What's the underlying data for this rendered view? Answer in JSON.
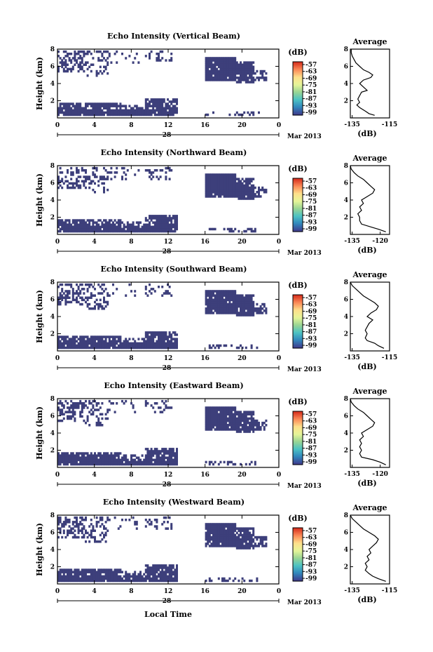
{
  "panels": [
    {
      "title": "Echo Intensity (Vertical Beam)",
      "profile": [
        [
          -123,
          0.3
        ],
        [
          -126,
          0.5
        ],
        [
          -128,
          0.8
        ],
        [
          -131,
          1.2
        ],
        [
          -132.5,
          1.5
        ],
        [
          -131,
          1.8
        ],
        [
          -132,
          2.2
        ],
        [
          -131,
          2.6
        ],
        [
          -130,
          3.0
        ],
        [
          -127,
          3.2
        ],
        [
          -129,
          3.6
        ],
        [
          -131,
          4.0
        ],
        [
          -129,
          4.4
        ],
        [
          -125,
          4.7
        ],
        [
          -124,
          5.0
        ],
        [
          -126,
          5.3
        ],
        [
          -129,
          5.6
        ],
        [
          -131,
          6.0
        ],
        [
          -133,
          6.4
        ],
        [
          -134,
          6.8
        ],
        [
          -135,
          7.2
        ],
        [
          -135.5,
          7.6
        ],
        [
          -135.5,
          8.0
        ]
      ]
    },
    {
      "title": "Echo Intensity (Northward Beam)",
      "profile": [
        [
          -117,
          0.3
        ],
        [
          -121,
          0.6
        ],
        [
          -124,
          0.8
        ],
        [
          -130,
          1.2
        ],
        [
          -131,
          1.6
        ],
        [
          -131,
          2.0
        ],
        [
          -132,
          2.4
        ],
        [
          -130,
          2.8
        ],
        [
          -131,
          3.2
        ],
        [
          -129,
          3.6
        ],
        [
          -130,
          4.0
        ],
        [
          -127,
          4.4
        ],
        [
          -124,
          4.8
        ],
        [
          -123,
          5.2
        ],
        [
          -125,
          5.6
        ],
        [
          -127,
          6.0
        ],
        [
          -129,
          6.4
        ],
        [
          -132,
          6.8
        ],
        [
          -134,
          7.2
        ],
        [
          -135.5,
          7.6
        ],
        [
          -136,
          8.0
        ]
      ]
    },
    {
      "title": "Echo Intensity (Southward Beam)",
      "profile": [
        [
          -118,
          0.3
        ],
        [
          -121,
          0.6
        ],
        [
          -123,
          0.9
        ],
        [
          -127,
          1.2
        ],
        [
          -128,
          1.5
        ],
        [
          -127,
          2.0
        ],
        [
          -128,
          2.4
        ],
        [
          -127,
          2.8
        ],
        [
          -126,
          3.2
        ],
        [
          -124,
          3.6
        ],
        [
          -127,
          4.0
        ],
        [
          -125,
          4.4
        ],
        [
          -122,
          4.8
        ],
        [
          -121,
          5.2
        ],
        [
          -123,
          5.6
        ],
        [
          -126,
          6.0
        ],
        [
          -129,
          6.4
        ],
        [
          -131,
          6.8
        ],
        [
          -133,
          7.2
        ],
        [
          -135,
          7.6
        ],
        [
          -136,
          8.0
        ]
      ]
    },
    {
      "title": "Echo Intensity (Eastward Beam)",
      "profile": [
        [
          -117,
          0.3
        ],
        [
          -120,
          0.6
        ],
        [
          -124,
          0.9
        ],
        [
          -130,
          1.2
        ],
        [
          -131,
          1.6
        ],
        [
          -130,
          2.0
        ],
        [
          -131,
          2.4
        ],
        [
          -130,
          2.8
        ],
        [
          -131,
          3.2
        ],
        [
          -129,
          3.6
        ],
        [
          -130,
          4.0
        ],
        [
          -127,
          4.4
        ],
        [
          -124,
          4.8
        ],
        [
          -123,
          5.2
        ],
        [
          -125,
          5.6
        ],
        [
          -127,
          6.0
        ],
        [
          -129,
          6.4
        ],
        [
          -132,
          6.8
        ],
        [
          -134,
          7.2
        ],
        [
          -135.5,
          7.6
        ],
        [
          -136,
          8.0
        ]
      ]
    },
    {
      "title": "Echo Intensity (Westward Beam)",
      "profile": [
        [
          -117,
          0.3
        ],
        [
          -121,
          0.6
        ],
        [
          -124,
          0.9
        ],
        [
          -126,
          1.2
        ],
        [
          -128,
          1.6
        ],
        [
          -127,
          2.0
        ],
        [
          -128,
          2.4
        ],
        [
          -126,
          2.8
        ],
        [
          -127,
          3.2
        ],
        [
          -125,
          3.6
        ],
        [
          -126,
          4.0
        ],
        [
          -124,
          4.4
        ],
        [
          -122,
          4.8
        ],
        [
          -121,
          5.2
        ],
        [
          -123,
          5.6
        ],
        [
          -126,
          6.0
        ],
        [
          -129,
          6.4
        ],
        [
          -131,
          6.8
        ],
        [
          -133,
          7.2
        ],
        [
          -135,
          7.6
        ],
        [
          -136,
          8.0
        ]
      ]
    }
  ],
  "chart_data": {
    "type": "heatmap",
    "ylabel": "Height (km)",
    "xlabel": "Local Time",
    "x_ticks": [
      "0",
      "4",
      "8",
      "12",
      "16",
      "20",
      "0"
    ],
    "y_ticks": [
      "2",
      "4",
      "6",
      "8"
    ],
    "xlim": [
      0,
      24
    ],
    "ylim": [
      0,
      8
    ],
    "date_center": "28",
    "date_right": "Mar 2013",
    "colorbar": {
      "unit": "(dB)",
      "labels": [
        "-57",
        "-63",
        "-69",
        "-75",
        "-81",
        "-87",
        "-93",
        "-99"
      ],
      "colors": [
        "#d7301f",
        "#fc8d59",
        "#fee08b",
        "#e6f598",
        "#99d594",
        "#4dc3c3",
        "#3288bd",
        "#3f3f8f"
      ]
    },
    "echo_color": "#3d3f7b",
    "average_title": "Average",
    "average_xlabel": "(dB)",
    "average_xticks_default": [
      "-135",
      "-115"
    ],
    "average_xticks_alt": [
      "-135",
      "-120"
    ],
    "average_yticks": [
      "2",
      "4",
      "6",
      "8"
    ],
    "average_xlim": [
      -136,
      -115
    ],
    "average_ylim": [
      0,
      8
    ]
  }
}
